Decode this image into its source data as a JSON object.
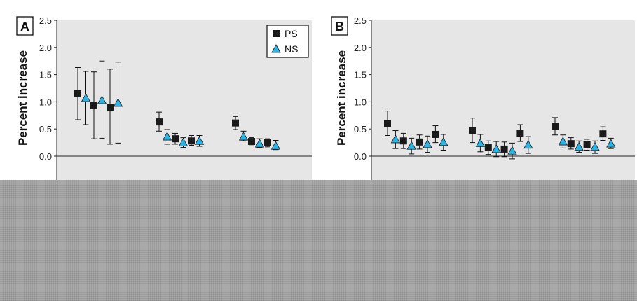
{
  "colors": {
    "plot_bg": "#e6e6e6",
    "ps_marker": "#1a1a1a",
    "ns_marker": "#2ab5e6",
    "error_bar": "#111111",
    "redaction": "#a9a9a9"
  },
  "chart_data": [
    {
      "panel": "A",
      "type": "scatter",
      "ylabel": "Percent increase",
      "ylim": [
        -0.5,
        2.5
      ],
      "yticks": [
        "2.5",
        "2.0",
        "1.5",
        "1.0",
        "0.5",
        "0.0"
      ],
      "ytick_values": [
        2.5,
        2.0,
        1.5,
        1.0,
        0.5,
        0.0
      ],
      "grid": false,
      "zero_line": true,
      "legend": {
        "placement": "top-right",
        "entries": [
          {
            "label": "PS",
            "marker": "square"
          },
          {
            "label": "NS",
            "marker": "triangle"
          }
        ]
      },
      "groups": [
        {
          "points": [
            {
              "series": "PS",
              "y": 1.15,
              "lo": 0.67,
              "hi": 1.63
            },
            {
              "series": "NS",
              "y": 1.07,
              "lo": 0.58,
              "hi": 1.56
            },
            {
              "series": "PS",
              "y": 0.93,
              "lo": 0.32,
              "hi": 1.55
            },
            {
              "series": "NS",
              "y": 1.03,
              "lo": 0.33,
              "hi": 1.75
            },
            {
              "series": "PS",
              "y": 0.9,
              "lo": 0.22,
              "hi": 1.6
            },
            {
              "series": "NS",
              "y": 0.98,
              "lo": 0.24,
              "hi": 1.73
            }
          ]
        },
        {
          "points": [
            {
              "series": "PS",
              "y": 0.63,
              "lo": 0.46,
              "hi": 0.81
            },
            {
              "series": "NS",
              "y": 0.36,
              "lo": 0.22,
              "hi": 0.49
            },
            {
              "series": "PS",
              "y": 0.32,
              "lo": 0.22,
              "hi": 0.42
            },
            {
              "series": "NS",
              "y": 0.25,
              "lo": 0.16,
              "hi": 0.34
            },
            {
              "series": "PS",
              "y": 0.28,
              "lo": 0.2,
              "hi": 0.38
            },
            {
              "series": "NS",
              "y": 0.28,
              "lo": 0.18,
              "hi": 0.38
            }
          ]
        },
        {
          "points": [
            {
              "series": "PS",
              "y": 0.61,
              "lo": 0.49,
              "hi": 0.73
            },
            {
              "series": "NS",
              "y": 0.36,
              "lo": 0.28,
              "hi": 0.46
            },
            {
              "series": "PS",
              "y": 0.27,
              "lo": 0.21,
              "hi": 0.34
            },
            {
              "series": "NS",
              "y": 0.23,
              "lo": 0.16,
              "hi": 0.32
            },
            {
              "series": "PS",
              "y": 0.25,
              "lo": 0.17,
              "hi": 0.32
            },
            {
              "series": "NS",
              "y": 0.19,
              "lo": 0.12,
              "hi": 0.29
            }
          ]
        }
      ]
    },
    {
      "panel": "B",
      "type": "scatter",
      "ylabel": "Percent increase",
      "ylim": [
        -0.5,
        2.5
      ],
      "yticks": [
        "2.5",
        "2.0",
        "1.5",
        "1.0",
        "0.5",
        "0.0"
      ],
      "ytick_values": [
        2.5,
        2.0,
        1.5,
        1.0,
        0.5,
        0.0
      ],
      "grid": false,
      "zero_line": true,
      "groups": [
        {
          "points": [
            {
              "series": "PS",
              "y": 0.6,
              "lo": 0.38,
              "hi": 0.83
            },
            {
              "series": "NS",
              "y": 0.31,
              "lo": 0.14,
              "hi": 0.47
            },
            {
              "series": "PS",
              "y": 0.28,
              "lo": 0.14,
              "hi": 0.42
            },
            {
              "series": "NS",
              "y": 0.19,
              "lo": 0.04,
              "hi": 0.33
            },
            {
              "series": "PS",
              "y": 0.26,
              "lo": 0.13,
              "hi": 0.39
            },
            {
              "series": "NS",
              "y": 0.22,
              "lo": 0.07,
              "hi": 0.37
            },
            {
              "series": "PS",
              "y": 0.4,
              "lo": 0.25,
              "hi": 0.56
            },
            {
              "series": "NS",
              "y": 0.26,
              "lo": 0.11,
              "hi": 0.4
            }
          ]
        },
        {
          "points": [
            {
              "series": "PS",
              "y": 0.47,
              "lo": 0.25,
              "hi": 0.7
            },
            {
              "series": "NS",
              "y": 0.24,
              "lo": 0.08,
              "hi": 0.4
            },
            {
              "series": "PS",
              "y": 0.16,
              "lo": 0.03,
              "hi": 0.28
            },
            {
              "series": "NS",
              "y": 0.13,
              "lo": -0.01,
              "hi": 0.27
            },
            {
              "series": "PS",
              "y": 0.13,
              "lo": -0.01,
              "hi": 0.26
            },
            {
              "series": "NS",
              "y": 0.1,
              "lo": -0.05,
              "hi": 0.24
            },
            {
              "series": "PS",
              "y": 0.42,
              "lo": 0.27,
              "hi": 0.58
            },
            {
              "series": "NS",
              "y": 0.21,
              "lo": 0.05,
              "hi": 0.36
            }
          ]
        },
        {
          "points": [
            {
              "series": "PS",
              "y": 0.55,
              "lo": 0.39,
              "hi": 0.71
            },
            {
              "series": "NS",
              "y": 0.27,
              "lo": 0.15,
              "hi": 0.39
            },
            {
              "series": "PS",
              "y": 0.23,
              "lo": 0.13,
              "hi": 0.34
            },
            {
              "series": "NS",
              "y": 0.17,
              "lo": 0.07,
              "hi": 0.28
            },
            {
              "series": "PS",
              "y": 0.21,
              "lo": 0.11,
              "hi": 0.31
            },
            {
              "series": "NS",
              "y": 0.17,
              "lo": 0.05,
              "hi": 0.28
            },
            {
              "series": "PS",
              "y": 0.41,
              "lo": 0.29,
              "hi": 0.54
            },
            {
              "series": "NS",
              "y": 0.23,
              "lo": 0.14,
              "hi": 0.33
            }
          ]
        }
      ]
    }
  ]
}
